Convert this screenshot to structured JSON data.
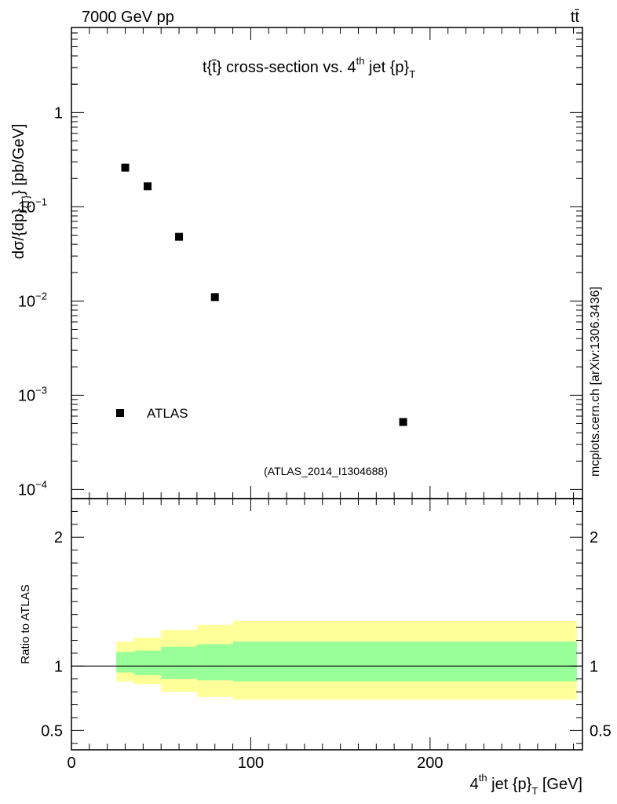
{
  "header": {
    "energy_label": "7000 GeV pp",
    "process_label": "tt̄",
    "plot_title": "t{t̄} cross-section vs. 4",
    "plot_title_sup": "th",
    "plot_title_tail": " jet {p}",
    "plot_title_sub": "T"
  },
  "side_label": "mcplots.cern.ch [arXiv:1306.3436]",
  "analysis_label": "(ATLAS_2014_I1304688)",
  "legend": {
    "entry": "ATLAS"
  },
  "colors": {
    "band_outer": "#ffff99",
    "band_inner": "#99ff99",
    "marker": "#000000",
    "analysis_text": "#999999"
  },
  "chart_data": [
    {
      "type": "scatter",
      "name": "main",
      "y_scale": "log",
      "ylabel_parts": [
        "dσ/{dp}",
        "{T}",
        "} [pb/GeV]"
      ],
      "xlim": [
        0,
        285
      ],
      "ylim": [
        8e-05,
        8
      ],
      "y_ticks": [
        {
          "value": 1,
          "label": "1",
          "exp": ""
        },
        {
          "value": 0.1,
          "label": "10",
          "exp": "−1"
        },
        {
          "value": 0.01,
          "label": "10",
          "exp": "−2"
        },
        {
          "value": 0.001,
          "label": "10",
          "exp": "−3"
        },
        {
          "value": 0.0001,
          "label": "10",
          "exp": "−4"
        }
      ],
      "series": [
        {
          "name": "ATLAS",
          "x": [
            30,
            42.5,
            60,
            80,
            185
          ],
          "y": [
            0.26,
            0.165,
            0.048,
            0.011,
            0.00052
          ]
        }
      ]
    },
    {
      "type": "area",
      "name": "ratio",
      "ylabel": "Ratio to ATLAS",
      "xlabel_parts": [
        "4",
        "th",
        " jet {p}",
        "T",
        " [GeV]"
      ],
      "xlim": [
        0,
        285
      ],
      "ylim": [
        0.35,
        2.3
      ],
      "x_ticks": [
        {
          "value": 0,
          "label": "0"
        },
        {
          "value": 100,
          "label": "100"
        },
        {
          "value": 200,
          "label": "200"
        }
      ],
      "y_ticks": [
        {
          "value": 0.5,
          "label": "0.5"
        },
        {
          "value": 1,
          "label": "1"
        },
        {
          "value": 2,
          "label": "2"
        }
      ],
      "reference_line": 1,
      "bins": [
        {
          "x_low": 25,
          "x_high": 35,
          "outer_low": 0.88,
          "outer_high": 1.19,
          "inner_low": 0.95,
          "inner_high": 1.11
        },
        {
          "x_low": 35,
          "x_high": 50,
          "outer_low": 0.86,
          "outer_high": 1.22,
          "inner_low": 0.93,
          "inner_high": 1.12
        },
        {
          "x_low": 50,
          "x_high": 70,
          "outer_low": 0.8,
          "outer_high": 1.28,
          "inner_low": 0.9,
          "inner_high": 1.15
        },
        {
          "x_low": 70,
          "x_high": 90,
          "outer_low": 0.76,
          "outer_high": 1.32,
          "inner_low": 0.89,
          "inner_high": 1.17
        },
        {
          "x_low": 90,
          "x_high": 282,
          "outer_low": 0.74,
          "outer_high": 1.35,
          "inner_low": 0.88,
          "inner_high": 1.19
        }
      ]
    }
  ]
}
